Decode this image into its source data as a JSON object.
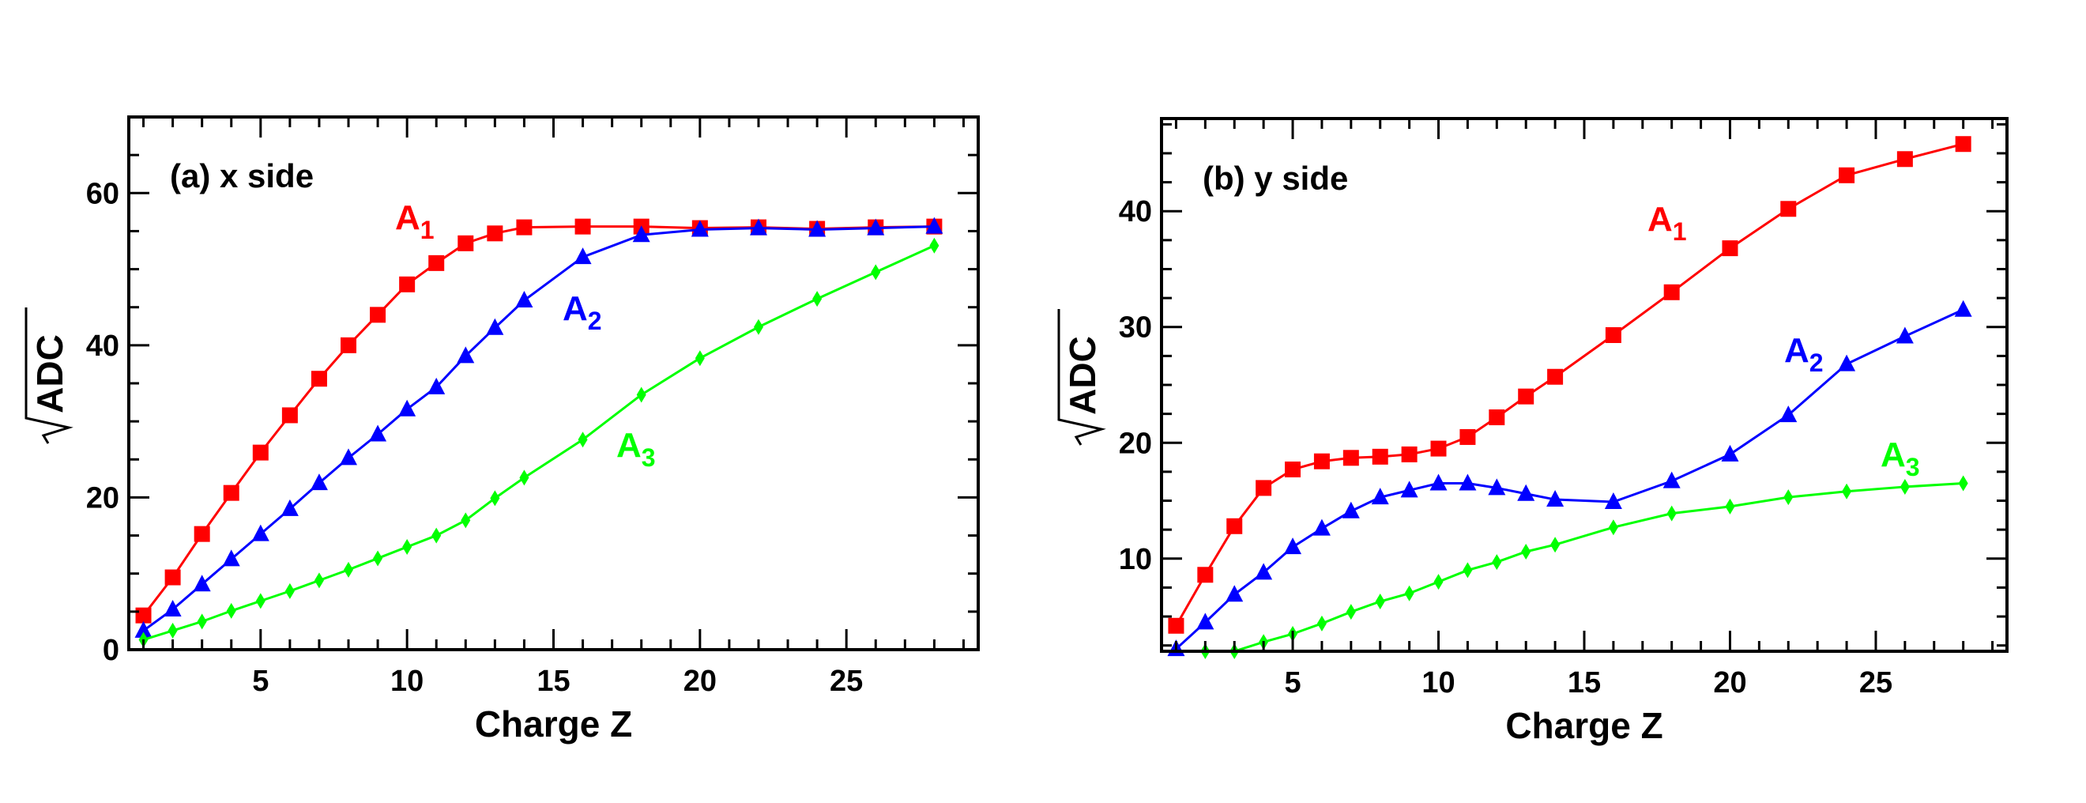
{
  "chart_data": [
    {
      "type": "line",
      "panel_label": "(a) x side",
      "xlabel": "Charge Z",
      "ylabel": "ADC",
      "xlim": [
        0.5,
        29.5
      ],
      "ylim": [
        0,
        70
      ],
      "xticks": [
        5,
        10,
        15,
        20,
        25
      ],
      "yticks": [
        0,
        20,
        40,
        60
      ],
      "grid": false,
      "series": [
        {
          "name": "A",
          "sub": "1",
          "color": "#ff0000",
          "marker": "square",
          "x": [
            1,
            2,
            3,
            4,
            5,
            6,
            7,
            8,
            9,
            10,
            11,
            12,
            13,
            14,
            16,
            18,
            20,
            22,
            24,
            26,
            28
          ],
          "y": [
            4.5,
            9.5,
            15.2,
            20.6,
            25.9,
            30.8,
            35.6,
            40.0,
            44.0,
            48.0,
            50.8,
            53.4,
            54.7,
            55.5,
            55.6,
            55.6,
            55.4,
            55.5,
            55.3,
            55.5,
            55.6
          ]
        },
        {
          "name": "A",
          "sub": "2",
          "color": "#0000ff",
          "marker": "triangle",
          "x": [
            1,
            2,
            3,
            4,
            5,
            6,
            7,
            8,
            9,
            10,
            11,
            12,
            13,
            14,
            16,
            18,
            20,
            22,
            24,
            26,
            28
          ],
          "y": [
            2.5,
            5.3,
            8.6,
            11.9,
            15.2,
            18.5,
            21.9,
            25.2,
            28.3,
            31.6,
            34.5,
            38.6,
            42.3,
            45.9,
            51.6,
            54.5,
            55.2,
            55.4,
            55.2,
            55.4,
            55.6
          ]
        },
        {
          "name": "A",
          "sub": "3",
          "color": "#00ff00",
          "marker": "diamond",
          "x": [
            1,
            2,
            3,
            4,
            5,
            6,
            7,
            8,
            9,
            10,
            11,
            12,
            13,
            14,
            16,
            18,
            20,
            22,
            24,
            26,
            28
          ],
          "y": [
            1.3,
            2.5,
            3.7,
            5.1,
            6.4,
            7.7,
            9.1,
            10.5,
            12.0,
            13.5,
            15.0,
            17.0,
            19.9,
            22.6,
            27.6,
            33.5,
            38.3,
            42.4,
            46.1,
            49.6,
            53.1
          ]
        }
      ]
    },
    {
      "type": "line",
      "panel_label": "(b) y side",
      "xlabel": "Charge Z",
      "ylabel": "ADC",
      "xlim": [
        0.5,
        29.5
      ],
      "ylim": [
        2,
        48
      ],
      "xticks": [
        5,
        10,
        15,
        20,
        25
      ],
      "yticks": [
        10,
        20,
        30,
        40
      ],
      "grid": false,
      "series": [
        {
          "name": "A",
          "sub": "1",
          "color": "#ff0000",
          "marker": "square",
          "x": [
            1,
            2,
            3,
            4,
            5,
            6,
            7,
            8,
            9,
            10,
            11,
            12,
            13,
            14,
            16,
            18,
            20,
            22,
            24,
            26,
            28
          ],
          "y": [
            4.2,
            8.6,
            12.8,
            16.1,
            17.7,
            18.4,
            18.7,
            18.8,
            19.0,
            19.5,
            20.5,
            22.2,
            24.0,
            25.7,
            29.3,
            33.0,
            36.8,
            40.2,
            43.1,
            44.5,
            45.8
          ]
        },
        {
          "name": "A",
          "sub": "2",
          "color": "#0000ff",
          "marker": "triangle",
          "x": [
            1,
            2,
            3,
            4,
            5,
            6,
            7,
            8,
            9,
            10,
            11,
            12,
            13,
            14,
            16,
            18,
            20,
            22,
            24,
            26,
            28
          ],
          "y": [
            2.2,
            4.5,
            6.9,
            8.8,
            11.0,
            12.6,
            14.1,
            15.3,
            15.9,
            16.5,
            16.5,
            16.1,
            15.6,
            15.1,
            14.9,
            16.7,
            19.0,
            22.4,
            26.8,
            29.2,
            31.5
          ]
        },
        {
          "name": "A",
          "sub": "3",
          "color": "#00ff00",
          "marker": "diamond",
          "x": [
            2,
            3,
            4,
            5,
            6,
            7,
            8,
            9,
            10,
            11,
            12,
            13,
            14,
            16,
            18,
            20,
            22,
            24,
            26,
            28
          ],
          "y": [
            2.0,
            2.0,
            2.8,
            3.5,
            4.4,
            5.4,
            6.3,
            7.0,
            8.0,
            9.0,
            9.7,
            10.6,
            11.2,
            12.7,
            13.9,
            14.5,
            15.3,
            15.8,
            16.2,
            16.5
          ]
        }
      ]
    }
  ]
}
